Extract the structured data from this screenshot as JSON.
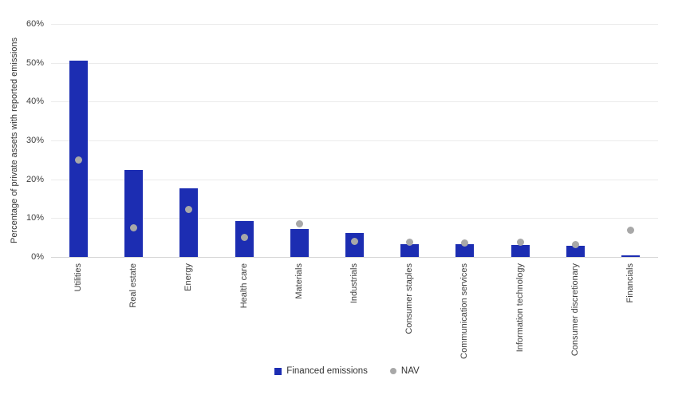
{
  "chart_data": {
    "type": "bar",
    "title": "",
    "xlabel": "",
    "ylabel": "Percentage of private assets with reported emissions",
    "ylim": [
      0,
      60
    ],
    "ytick_step": 10,
    "ytick_suffix": "%",
    "grid": true,
    "legend_position": "bottom",
    "categories": [
      "Utilities",
      "Real estate",
      "Energy",
      "Health care",
      "Materials",
      "Industrials",
      "Consumer staples",
      "Communication services",
      "Information technology",
      "Consumer discretionary",
      "Financials"
    ],
    "series": [
      {
        "name": "Financed emissions",
        "type": "bar",
        "color": "#1c2db2",
        "values": [
          50.5,
          22.3,
          17.7,
          9.3,
          7.1,
          6.2,
          3.3,
          3.3,
          3.1,
          2.9,
          0.5
        ]
      },
      {
        "name": "NAV",
        "type": "scatter",
        "color": "#a8a8a8",
        "values": [
          25,
          7.5,
          12.2,
          5,
          8.6,
          4.1,
          3.8,
          3.6,
          3.9,
          3.2,
          6.8
        ]
      }
    ]
  },
  "colors": {
    "gridline": "#ebebeb",
    "axis_line": "#d6d6d6",
    "text": "#404040",
    "background": "#ffffff"
  }
}
